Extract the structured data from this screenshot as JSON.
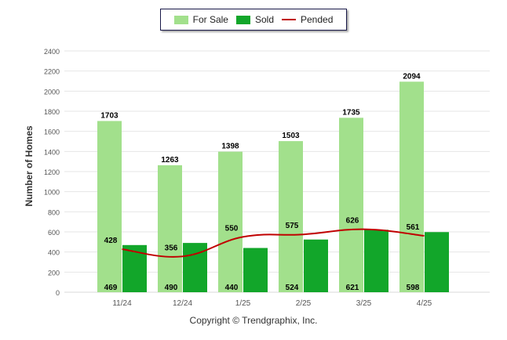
{
  "legend": {
    "for_sale_label": "For Sale",
    "sold_label": "Sold",
    "pended_label": "Pended"
  },
  "colors": {
    "for_sale": "#a2e08c",
    "sold": "#12a62a",
    "pended": "#c00000",
    "grid": "#e6e6e6",
    "axis_text": "#555555"
  },
  "copyright": "Copyright © Trendgraphix, Inc.",
  "chart_data": {
    "type": "bar",
    "categories": [
      "11/24",
      "12/24",
      "1/25",
      "2/25",
      "3/25",
      "4/25"
    ],
    "series": [
      {
        "name": "For Sale",
        "type": "bar",
        "values": [
          1703,
          1263,
          1398,
          1503,
          1735,
          2094
        ]
      },
      {
        "name": "Sold",
        "type": "bar",
        "values": [
          469,
          490,
          440,
          524,
          621,
          598
        ]
      },
      {
        "name": "Pended",
        "type": "line",
        "values": [
          428,
          356,
          550,
          575,
          626,
          561
        ]
      }
    ],
    "ylabel": "Number of Homes",
    "ylim": [
      0,
      2400
    ],
    "yticks": [
      0,
      200,
      400,
      600,
      800,
      1000,
      1200,
      1400,
      1600,
      1800,
      2000,
      2200,
      2400
    ],
    "grid": true,
    "legend_position": "top-center"
  }
}
